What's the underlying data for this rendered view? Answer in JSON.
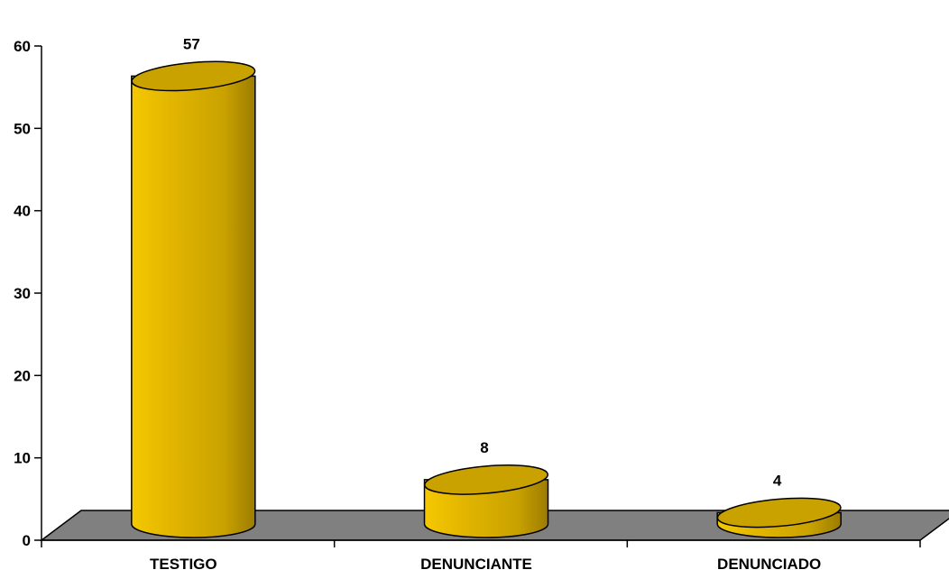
{
  "chart_data": {
    "type": "bar",
    "style": "3d-cylinder",
    "categories": [
      "TESTIGO",
      "DENUNCIANTE",
      "DENUNCIADO"
    ],
    "values": [
      57,
      8,
      4
    ],
    "data_labels": [
      "57",
      "8",
      "4"
    ],
    "title": "",
    "xlabel": "",
    "ylabel": "",
    "ylim": [
      0,
      60
    ],
    "yticks": [
      0,
      10,
      20,
      30,
      40,
      50,
      60
    ],
    "ytick_labels": [
      "0",
      "10",
      "20",
      "30",
      "40",
      "50",
      "60"
    ],
    "grid": false,
    "legend": "none",
    "colors": {
      "bar_light": "#F5C800",
      "bar_mid": "#E0B400",
      "bar_dark": "#9C7C00",
      "bar_top": "#C9A200",
      "floor": "#808080",
      "axis": "#000000"
    }
  }
}
